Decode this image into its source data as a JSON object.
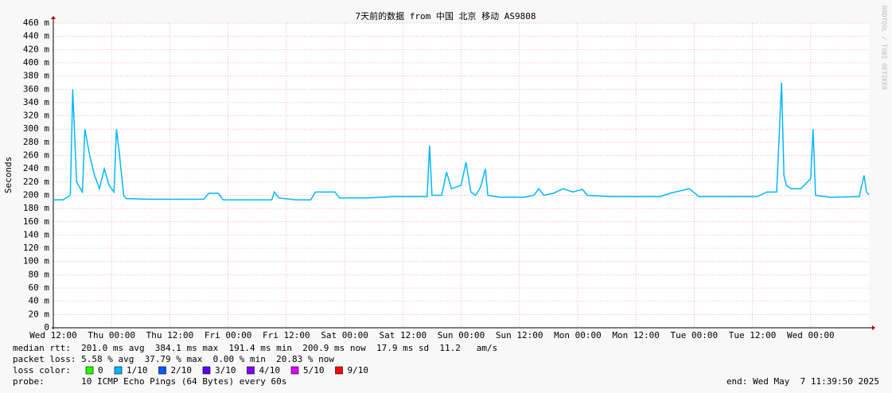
{
  "chart_data": {
    "type": "line",
    "title": "7天前的数据 from 中国 北京 移动 AS9808",
    "y_label": "Seconds",
    "watermark": "RRDTOOL / TOBI OETIKER",
    "x": [
      0,
      2,
      3.5,
      4,
      4.8,
      6,
      6.5,
      7.5,
      8.5,
      9.5,
      10.5,
      11.5,
      12.5,
      13,
      13.5,
      14.5,
      15,
      20,
      25,
      31,
      32,
      34,
      35,
      40,
      45,
      45.5,
      46.5,
      50,
      53,
      54,
      58,
      59,
      65,
      70,
      77,
      77.5,
      78,
      80,
      81,
      82,
      84,
      85,
      86,
      87,
      88,
      89,
      89.5,
      92,
      97,
      99,
      100,
      101,
      103,
      105,
      107,
      109,
      110,
      115,
      125,
      127,
      131,
      133,
      140,
      145,
      147,
      149,
      150,
      150.5,
      151,
      152,
      154,
      156,
      156.5,
      157,
      160,
      166,
      167,
      167.5,
      168
    ],
    "series": [
      {
        "name": "median rtt",
        "color": "#00b8ff",
        "values": [
          0.193,
          0.193,
          0.2,
          0.36,
          0.22,
          0.205,
          0.3,
          0.26,
          0.23,
          0.21,
          0.24,
          0.215,
          0.205,
          0.3,
          0.27,
          0.2,
          0.195,
          0.194,
          0.194,
          0.194,
          0.203,
          0.203,
          0.193,
          0.193,
          0.193,
          0.205,
          0.196,
          0.193,
          0.193,
          0.205,
          0.205,
          0.196,
          0.196,
          0.198,
          0.198,
          0.275,
          0.2,
          0.2,
          0.235,
          0.21,
          0.215,
          0.25,
          0.205,
          0.2,
          0.212,
          0.24,
          0.2,
          0.197,
          0.197,
          0.2,
          0.21,
          0.2,
          0.203,
          0.21,
          0.205,
          0.209,
          0.2,
          0.198,
          0.198,
          0.203,
          0.21,
          0.198,
          0.198,
          0.198,
          0.205,
          0.205,
          0.37,
          0.23,
          0.215,
          0.21,
          0.21,
          0.225,
          0.3,
          0.2,
          0.197,
          0.198,
          0.23,
          0.205,
          0.201
        ]
      }
    ],
    "xlim": [
      0,
      168
    ],
    "xticks": [
      {
        "value": 0,
        "label": "Wed 12:00"
      },
      {
        "value": 12,
        "label": "Thu 00:00"
      },
      {
        "value": 24,
        "label": "Thu 12:00"
      },
      {
        "value": 36,
        "label": "Fri 00:00"
      },
      {
        "value": 48,
        "label": "Fri 12:00"
      },
      {
        "value": 60,
        "label": "Sat 00:00"
      },
      {
        "value": 72,
        "label": "Sat 12:00"
      },
      {
        "value": 84,
        "label": "Sun 00:00"
      },
      {
        "value": 96,
        "label": "Sun 12:00"
      },
      {
        "value": 108,
        "label": "Mon 00:00"
      },
      {
        "value": 120,
        "label": "Mon 12:00"
      },
      {
        "value": 132,
        "label": "Tue 00:00"
      },
      {
        "value": 144,
        "label": "Tue 12:00"
      },
      {
        "value": 156,
        "label": "Wed 00:00"
      }
    ],
    "ylim": [
      0,
      0.46
    ],
    "yticks": [
      0,
      {
        "value": 0.02,
        "label": "20 m"
      },
      {
        "value": 0.04,
        "label": "40 m"
      },
      {
        "value": 0.06,
        "label": "60 m"
      },
      {
        "value": 0.08,
        "label": "80 m"
      },
      {
        "value": 0.1,
        "label": "100 m"
      },
      {
        "value": 0.12,
        "label": "120 m"
      },
      {
        "value": 0.14,
        "label": "140 m"
      },
      {
        "value": 0.16,
        "label": "160 m"
      },
      {
        "value": 0.18,
        "label": "180 m"
      },
      {
        "value": 0.2,
        "label": "200 m"
      },
      {
        "value": 0.22,
        "label": "220 m"
      },
      {
        "value": 0.24,
        "label": "240 m"
      },
      {
        "value": 0.26,
        "label": "260 m"
      },
      {
        "value": 0.28,
        "label": "280 m"
      },
      {
        "value": 0.3,
        "label": "300 m"
      },
      {
        "value": 0.32,
        "label": "320 m"
      },
      {
        "value": 0.34,
        "label": "340 m"
      },
      {
        "value": 0.36,
        "label": "360 m"
      },
      {
        "value": 0.38,
        "label": "380 m"
      },
      {
        "value": 0.4,
        "label": "400 m"
      },
      {
        "value": 0.42,
        "label": "420 m"
      },
      {
        "value": 0.44,
        "label": "440 m"
      },
      {
        "value": 0.46,
        "label": "460 m"
      }
    ],
    "grid": true,
    "stats": [
      "median rtt:  201.0 ms avg  384.1 ms max  191.4 ms min  200.9 ms now  17.9 ms sd  11.2   am/s",
      "packet loss: 5.58 % avg  37.79 % max  0.00 % min  20.83 % now"
    ],
    "loss_label": "loss color:",
    "loss_colors": [
      {
        "label": "0",
        "color": "#26ff00"
      },
      {
        "label": "1/10",
        "color": "#00b8ff"
      },
      {
        "label": "2/10",
        "color": "#0059ff"
      },
      {
        "label": "3/10",
        "color": "#5e00ff"
      },
      {
        "label": "4/10",
        "color": "#7e00ff"
      },
      {
        "label": "5/10",
        "color": "#dd00ff"
      },
      {
        "label": "9/10",
        "color": "#ff0000"
      }
    ],
    "probe": "probe:       10 ICMP Echo Pings (64 Bytes) every 60s",
    "end": "end: Wed May  7 11:39:50 2025"
  }
}
